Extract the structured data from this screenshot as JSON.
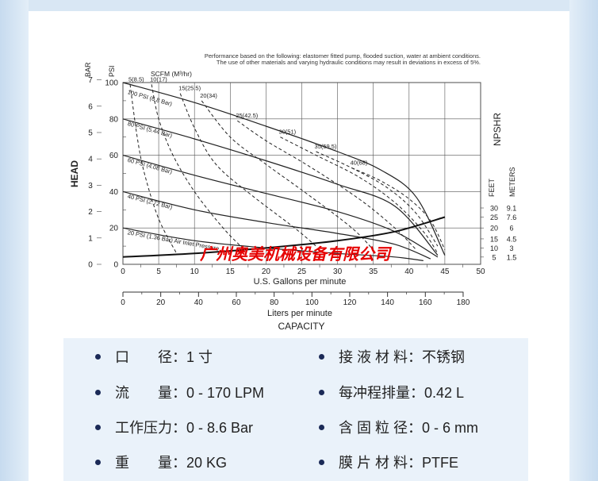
{
  "chart_data": {
    "type": "line",
    "note_lines": [
      "Performance based on the following: elastomer fitted pump, flooded suction, water at ambient conditions.",
      "The use of other materials and varying hydraulic conditions may result in deviations in excess of 5%."
    ],
    "head_label": "HEAD",
    "bar_label": "BAR",
    "psi_label": "PSI",
    "scfm_label": "SCFM (M³/hr)",
    "npshr_label": "NPSHR",
    "feet_label": "FEET",
    "meters_label": "METERS",
    "xlabel": "U.S. Gallons per minute",
    "xlabel2": "Liters per minute",
    "capacity_label": "CAPACITY",
    "xlim": [
      0,
      50
    ],
    "ylim": [
      0,
      100
    ],
    "gpm_ticks": [
      0,
      5,
      10,
      15,
      20,
      25,
      30,
      35,
      40,
      45,
      50
    ],
    "lpm_ticks": [
      0,
      20,
      40,
      60,
      80,
      100,
      120,
      140,
      160,
      180
    ],
    "bar_ticks": [
      "0",
      "1",
      "2",
      "3",
      "4",
      "5",
      "6",
      "7"
    ],
    "psi_ticks": [
      "0",
      "20",
      "40",
      "60",
      "80",
      "100"
    ],
    "feet_ticks": [
      "5",
      "10",
      "15",
      "20",
      "25",
      "30"
    ],
    "meters_ticks": [
      "1.5",
      "3",
      "4.5",
      "6",
      "7.6",
      "9.1"
    ],
    "series": [
      {
        "name": "100 PSI (6.8 Bar)",
        "points": [
          [
            0,
            100
          ],
          [
            10,
            89
          ],
          [
            20,
            76
          ],
          [
            30,
            62
          ],
          [
            36,
            52
          ],
          [
            41,
            37
          ],
          [
            45,
            5
          ]
        ]
      },
      {
        "name": "80 PSI (5.44 Bar)",
        "points": [
          [
            0,
            80
          ],
          [
            10,
            69
          ],
          [
            20,
            57
          ],
          [
            30,
            44
          ],
          [
            38,
            32
          ],
          [
            44,
            5
          ]
        ]
      },
      {
        "name": "60 PSI (4.08 Bar)",
        "points": [
          [
            0,
            60
          ],
          [
            10,
            49
          ],
          [
            20,
            39
          ],
          [
            30,
            29
          ],
          [
            38,
            18
          ],
          [
            44,
            4
          ]
        ]
      },
      {
        "name": "40 PSI (2.72 Bar)",
        "points": [
          [
            0,
            40
          ],
          [
            10,
            30
          ],
          [
            20,
            23
          ],
          [
            30,
            17
          ],
          [
            38,
            11
          ],
          [
            43,
            3
          ]
        ]
      },
      {
        "name": "20 PSI (1.36 Bar) Air Inlet Pressure",
        "points": [
          [
            0,
            20
          ],
          [
            10,
            13
          ],
          [
            20,
            9
          ],
          [
            30,
            6
          ],
          [
            38,
            4
          ],
          [
            42,
            2
          ]
        ]
      }
    ],
    "scfm_curves": [
      {
        "name": "5(8.5)",
        "points": [
          [
            1,
            99
          ],
          [
            2,
            70
          ],
          [
            3,
            50
          ],
          [
            5,
            25
          ],
          [
            7.5,
            6
          ]
        ]
      },
      {
        "name": "10(17)",
        "points": [
          [
            4,
            99
          ],
          [
            5,
            80
          ],
          [
            7,
            60
          ],
          [
            10,
            40
          ],
          [
            14,
            20
          ],
          [
            17,
            8
          ]
        ]
      },
      {
        "name": "15(25.5)",
        "points": [
          [
            8,
            94
          ],
          [
            10,
            75
          ],
          [
            13,
            55
          ],
          [
            18,
            38
          ],
          [
            24,
            20
          ],
          [
            27,
            10
          ]
        ]
      },
      {
        "name": "20(34)",
        "points": [
          [
            11,
            90
          ],
          [
            15,
            70
          ],
          [
            20,
            55
          ],
          [
            26,
            38
          ],
          [
            32,
            20
          ],
          [
            35,
            8
          ]
        ]
      },
      {
        "name": "25(42.5)",
        "points": [
          [
            16,
            79
          ],
          [
            20,
            68
          ],
          [
            26,
            54
          ],
          [
            33,
            36
          ],
          [
            38,
            20
          ],
          [
            41,
            8
          ]
        ]
      },
      {
        "name": "30(51)",
        "points": [
          [
            22,
            70
          ],
          [
            27,
            60
          ],
          [
            33,
            48
          ],
          [
            38,
            34
          ],
          [
            42,
            18
          ],
          [
            44,
            6
          ]
        ]
      },
      {
        "name": "35(59.5)",
        "points": [
          [
            27,
            62
          ],
          [
            32,
            53
          ],
          [
            37,
            42
          ],
          [
            41,
            28
          ],
          [
            44,
            10
          ]
        ]
      },
      {
        "name": "40(68)",
        "points": [
          [
            32,
            53
          ],
          [
            36,
            46
          ],
          [
            40,
            36
          ],
          [
            43,
            24
          ],
          [
            45,
            8
          ]
        ]
      }
    ],
    "npshr_curve": {
      "name": "NPSHR",
      "points": [
        [
          0,
          4
        ],
        [
          10,
          6
        ],
        [
          20,
          9
        ],
        [
          30,
          13
        ],
        [
          38,
          18
        ],
        [
          45,
          26
        ]
      ]
    }
  },
  "watermark": "广州奥美机械设备有限公司",
  "specs": [
    {
      "label": "口　　径：",
      "value": "1 寸"
    },
    {
      "label": "接 液 材 料：",
      "value": "不锈钢"
    },
    {
      "label": "流　　量：",
      "value": "0 - 170 LPM"
    },
    {
      "label": "每冲程排量：",
      "value": "0.42 L"
    },
    {
      "label": "工作压力：",
      "value": "0 - 8.6 Bar"
    },
    {
      "label": "含 固 粒 径：",
      "value": "0 - 6 mm"
    },
    {
      "label": "重　　量：",
      "value": "20 KG"
    },
    {
      "label": "膜 片 材 料：",
      "value": "PTFE"
    }
  ],
  "colors": {
    "accent": "#1b2a57",
    "watermark": "#e60000",
    "grid": "#555555"
  }
}
